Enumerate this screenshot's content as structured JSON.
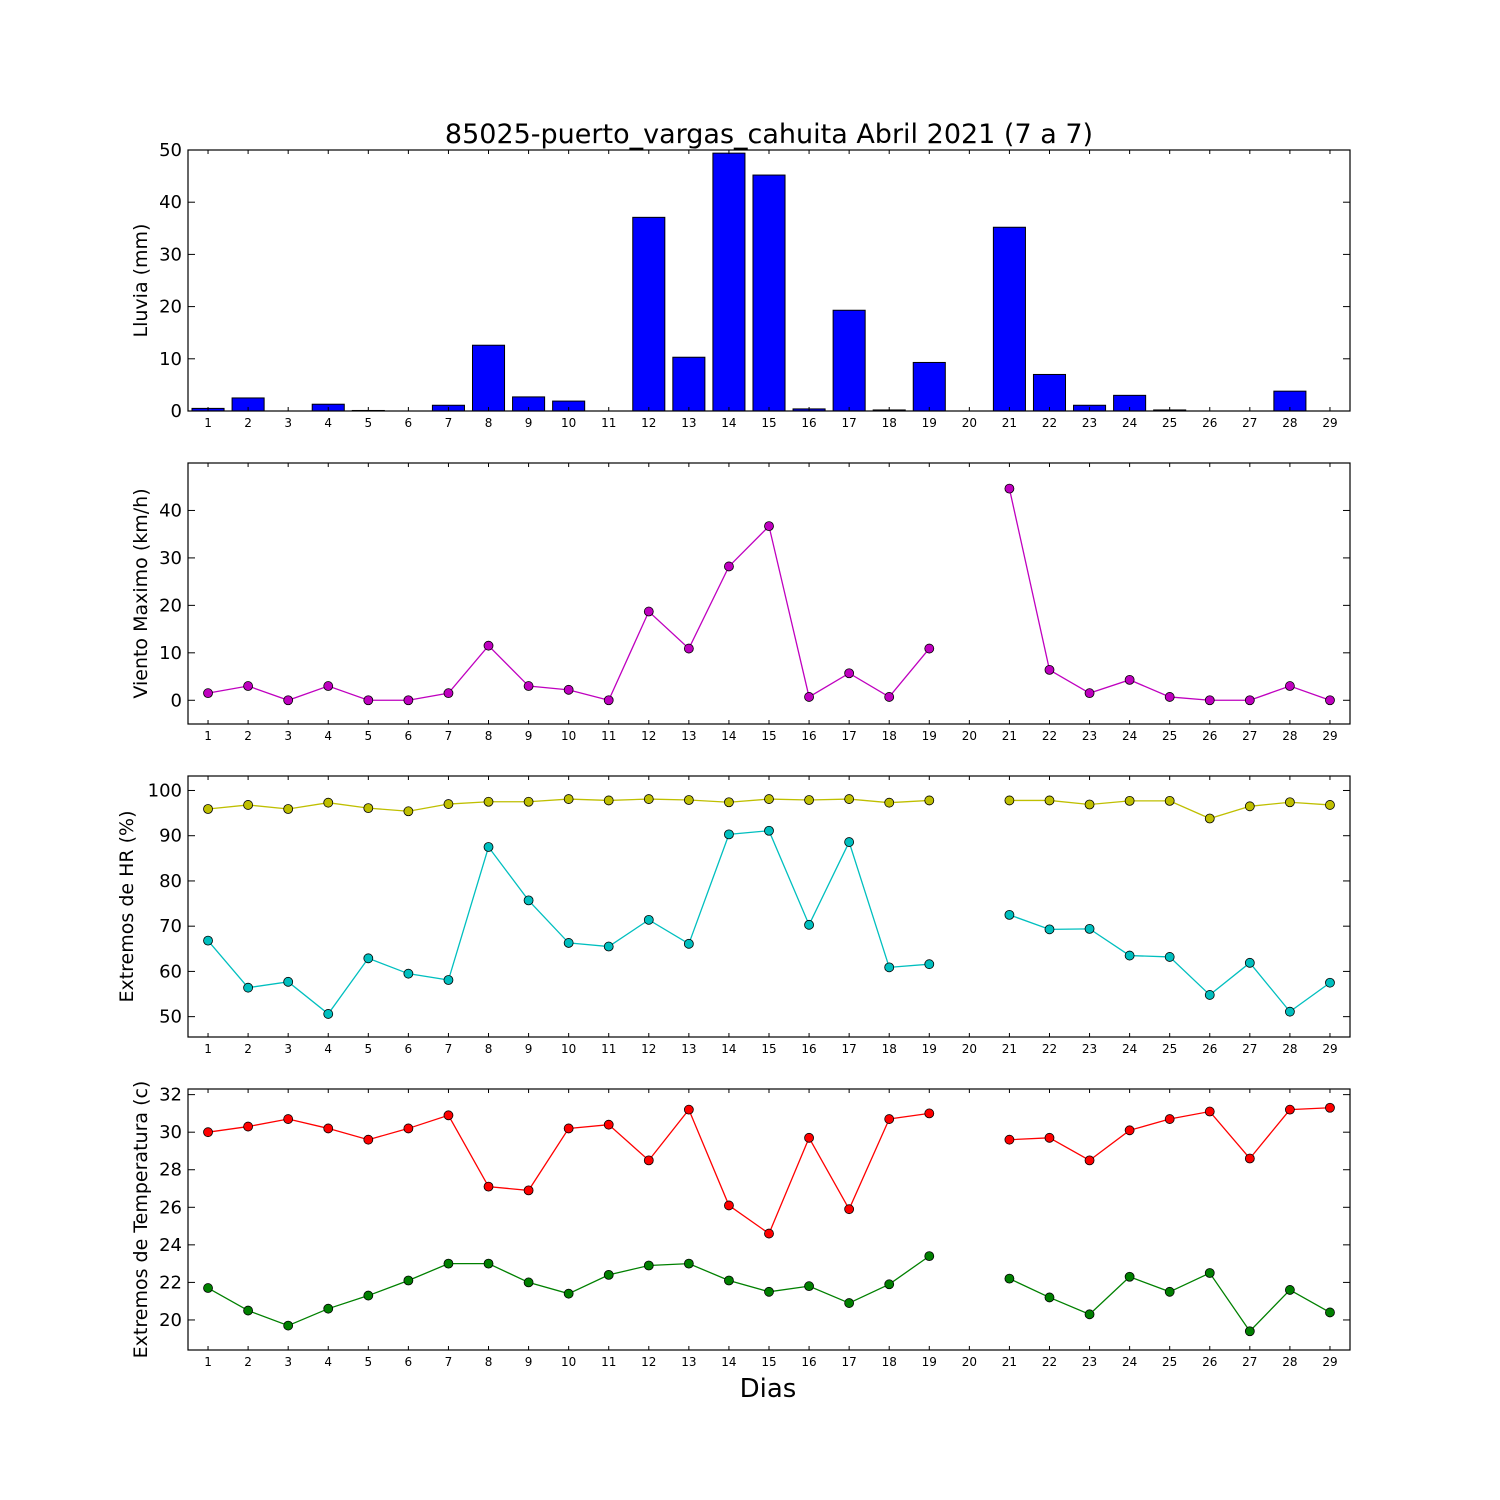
{
  "chart_data": [
    {
      "type": "bar",
      "title": "85025-puerto_vargas_cahuita Abril 2021  (7 a 7)",
      "xlabel": "",
      "ylabel": "Lluvia (mm)",
      "categories": [
        "1",
        "2",
        "3",
        "4",
        "5",
        "6",
        "7",
        "8",
        "9",
        "10",
        "11",
        "12",
        "13",
        "14",
        "15",
        "16",
        "17",
        "18",
        "19",
        "20",
        "21",
        "22",
        "23",
        "24",
        "25",
        "26",
        "27",
        "28",
        "29"
      ],
      "series": [
        {
          "color": "#0000ff",
          "values": [
            0.5,
            2.5,
            0,
            1.3,
            0.1,
            0,
            1.1,
            12.6,
            2.7,
            1.9,
            0,
            37.1,
            10.3,
            49.4,
            45.2,
            0.4,
            19.3,
            0.2,
            9.3,
            null,
            35.2,
            7.0,
            1.1,
            3.0,
            0.2,
            0,
            0,
            3.8,
            null
          ]
        }
      ],
      "ylim": [
        0,
        50
      ],
      "yticks": [
        0,
        10,
        20,
        30,
        40,
        50
      ],
      "grid": false
    },
    {
      "type": "line",
      "title": "",
      "xlabel": "",
      "ylabel": "Viento Maximo (km/h)",
      "categories": [
        "1",
        "2",
        "3",
        "4",
        "5",
        "6",
        "7",
        "8",
        "9",
        "10",
        "11",
        "12",
        "13",
        "14",
        "15",
        "16",
        "17",
        "18",
        "19",
        "20",
        "21",
        "22",
        "23",
        "24",
        "25",
        "26",
        "27",
        "28",
        "29"
      ],
      "series": [
        {
          "color": "#bf00bf",
          "values": [
            1.5,
            3.0,
            0,
            3.0,
            0,
            0,
            1.5,
            11.5,
            3.0,
            2.2,
            0,
            18.7,
            10.9,
            28.2,
            36.7,
            0.7,
            5.7,
            0.7,
            10.9,
            null,
            44.6,
            6.4,
            1.5,
            4.3,
            0.7,
            0,
            0,
            3.0,
            0
          ]
        }
      ],
      "ylim": [
        -5,
        50
      ],
      "yticks": [
        0,
        10,
        20,
        30,
        40
      ],
      "grid": false
    },
    {
      "type": "line",
      "title": "",
      "xlabel": "",
      "ylabel": "Extremos de HR (%)",
      "categories": [
        "1",
        "2",
        "3",
        "4",
        "5",
        "6",
        "7",
        "8",
        "9",
        "10",
        "11",
        "12",
        "13",
        "14",
        "15",
        "16",
        "17",
        "18",
        "19",
        "20",
        "21",
        "22",
        "23",
        "24",
        "25",
        "26",
        "27",
        "28",
        "29"
      ],
      "series": [
        {
          "color": "#bfbf00",
          "values": [
            95.9,
            96.8,
            95.9,
            97.3,
            96.1,
            95.4,
            97.0,
            97.5,
            97.5,
            98.1,
            97.8,
            98.1,
            97.9,
            97.4,
            98.1,
            97.9,
            98.1,
            97.3,
            97.8,
            null,
            97.8,
            97.8,
            96.9,
            97.7,
            97.7,
            93.8,
            96.5,
            97.4,
            96.8
          ]
        },
        {
          "color": "#00bfbf",
          "values": [
            66.8,
            56.4,
            57.7,
            50.6,
            62.9,
            59.5,
            58.1,
            87.5,
            75.7,
            66.3,
            65.5,
            71.4,
            66.1,
            90.3,
            91.1,
            70.3,
            88.6,
            60.9,
            61.6,
            null,
            72.5,
            69.3,
            69.4,
            63.5,
            63.2,
            54.8,
            61.9,
            51.1,
            57.5
          ]
        }
      ],
      "ylim": [
        45.5,
        103.2
      ],
      "yticks": [
        50,
        60,
        70,
        80,
        90,
        100
      ],
      "grid": false
    },
    {
      "type": "line",
      "title": "",
      "xlabel": "Dias",
      "ylabel": "Extremos de Temperatura (c)",
      "categories": [
        "1",
        "2",
        "3",
        "4",
        "5",
        "6",
        "7",
        "8",
        "9",
        "10",
        "11",
        "12",
        "13",
        "14",
        "15",
        "16",
        "17",
        "18",
        "19",
        "20",
        "21",
        "22",
        "23",
        "24",
        "25",
        "26",
        "27",
        "28",
        "29"
      ],
      "series": [
        {
          "color": "#ff0000",
          "values": [
            30.0,
            30.3,
            30.7,
            30.2,
            29.6,
            30.2,
            30.9,
            27.1,
            26.9,
            30.2,
            30.4,
            28.5,
            31.2,
            26.1,
            24.6,
            29.7,
            25.9,
            30.7,
            31.0,
            null,
            29.6,
            29.7,
            28.5,
            30.1,
            30.7,
            31.1,
            28.6,
            31.2,
            31.3
          ]
        },
        {
          "color": "#008000",
          "values": [
            21.7,
            20.5,
            19.7,
            20.6,
            21.3,
            22.1,
            23.0,
            23.0,
            22.0,
            21.4,
            22.4,
            22.9,
            23.0,
            22.1,
            21.5,
            21.8,
            20.9,
            21.9,
            23.4,
            null,
            22.2,
            21.2,
            20.3,
            22.3,
            21.5,
            22.5,
            19.4,
            21.6,
            20.4
          ]
        }
      ],
      "ylim": [
        18.4,
        32.3
      ],
      "yticks": [
        20,
        22,
        24,
        26,
        28,
        30,
        32
      ],
      "grid": false
    }
  ]
}
